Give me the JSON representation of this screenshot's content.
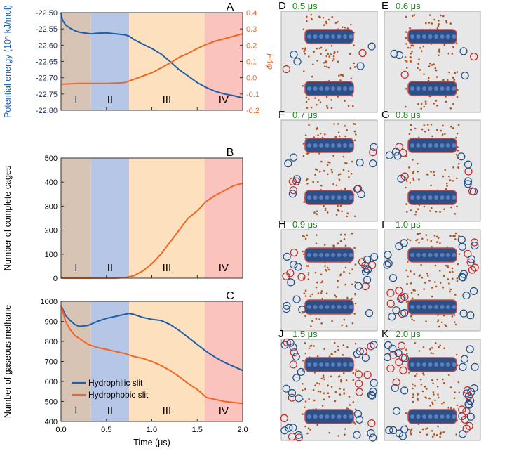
{
  "chart_data": {
    "type": "line",
    "x_axis": {
      "label": "Time (μs)",
      "range": [
        0,
        2.0
      ],
      "ticks": [
        "0.0",
        "0.5",
        "1.0",
        "1.5",
        "2.0"
      ]
    },
    "stage_boundaries": [
      0,
      0.33,
      0.75,
      1.58,
      2.0
    ],
    "stage_labels": [
      "I",
      "II",
      "III",
      "IV"
    ],
    "stage_colors": [
      "#d8c4b4",
      "#b6c6e6",
      "#fde1bf",
      "#fbc3bd"
    ],
    "panels": [
      {
        "letter": "A",
        "left_axis": {
          "label": "Potential energy (10⁵ kJ/mol)",
          "range": [
            -22.8,
            -22.5
          ],
          "ticks": [
            "-22.50",
            "-22.55",
            "-22.60",
            "-22.65",
            "-22.70",
            "-22.75",
            "-22.80"
          ],
          "color": "#1f5fa8"
        },
        "right_axis": {
          "label": "F4φ",
          "range": [
            -0.2,
            0.4
          ],
          "ticks": [
            "0.4",
            "0.3",
            "0.2",
            "0.1",
            "0.0",
            "-0.1",
            "-0.2"
          ],
          "color": "#f26522"
        },
        "series": [
          {
            "name": "Potential energy",
            "axis": "left",
            "color": "#1f5fa8",
            "x": [
              0,
              0.01,
              0.02,
              0.05,
              0.1,
              0.15,
              0.2,
              0.25,
              0.33,
              0.4,
              0.5,
              0.6,
              0.7,
              0.75,
              0.8,
              0.9,
              1.0,
              1.1,
              1.2,
              1.3,
              1.4,
              1.5,
              1.6,
              1.7,
              1.8,
              1.9,
              2.0
            ],
            "y": [
              -22.5,
              -22.515,
              -22.525,
              -22.538,
              -22.548,
              -22.555,
              -22.56,
              -22.562,
              -22.565,
              -22.563,
              -22.562,
              -22.565,
              -22.568,
              -22.572,
              -22.582,
              -22.597,
              -22.61,
              -22.627,
              -22.65,
              -22.675,
              -22.695,
              -22.715,
              -22.73,
              -22.742,
              -22.75,
              -22.755,
              -22.762
            ]
          },
          {
            "name": "F4φ",
            "axis": "right",
            "color": "#f26522",
            "x": [
              0,
              0.2,
              0.33,
              0.5,
              0.6,
              0.7,
              0.75,
              0.8,
              0.9,
              1.0,
              1.1,
              1.2,
              1.3,
              1.4,
              1.5,
              1.6,
              1.7,
              1.8,
              1.9,
              2.0
            ],
            "y": [
              -0.04,
              -0.035,
              -0.035,
              -0.035,
              -0.033,
              -0.03,
              -0.02,
              -0.01,
              0.01,
              0.03,
              0.06,
              0.09,
              0.125,
              0.15,
              0.18,
              0.205,
              0.225,
              0.24,
              0.255,
              0.27
            ]
          }
        ]
      },
      {
        "letter": "B",
        "left_axis": {
          "label": "Number of complete cages",
          "range": [
            0,
            500
          ],
          "ticks": [
            "500",
            "400",
            "300",
            "200",
            "100",
            "0"
          ],
          "color": "#000000"
        },
        "series": [
          {
            "name": "Complete cages",
            "axis": "left",
            "color": "#f26522",
            "x": [
              0,
              0.6,
              0.7,
              0.8,
              0.9,
              1.0,
              1.1,
              1.2,
              1.3,
              1.4,
              1.5,
              1.55,
              1.6,
              1.7,
              1.8,
              1.9,
              2.0
            ],
            "y": [
              0,
              0,
              2,
              10,
              30,
              60,
              100,
              150,
              200,
              250,
              280,
              300,
              320,
              345,
              365,
              385,
              395
            ]
          }
        ]
      },
      {
        "letter": "C",
        "left_axis": {
          "label": "Number of gaseous methane",
          "range": [
            400,
            1000
          ],
          "ticks": [
            "1000",
            "900",
            "800",
            "700",
            "600",
            "500",
            "400"
          ],
          "color": "#000000"
        },
        "series": [
          {
            "name": "Hydrophilic slit",
            "axis": "left",
            "color": "#1f5fa8",
            "x": [
              0,
              0.05,
              0.1,
              0.15,
              0.2,
              0.3,
              0.4,
              0.5,
              0.6,
              0.7,
              0.75,
              0.8,
              0.9,
              1.0,
              1.1,
              1.2,
              1.3,
              1.4,
              1.5,
              1.6,
              1.7,
              1.8,
              1.9,
              2.0
            ],
            "y": [
              980,
              930,
              905,
              885,
              875,
              880,
              900,
              915,
              925,
              935,
              940,
              935,
              920,
              910,
              905,
              885,
              855,
              820,
              785,
              750,
              720,
              695,
              675,
              655
            ]
          },
          {
            "name": "Hydrophobic slit",
            "axis": "left",
            "color": "#f26522",
            "x": [
              0,
              0.05,
              0.1,
              0.15,
              0.2,
              0.3,
              0.4,
              0.5,
              0.6,
              0.7,
              0.8,
              0.9,
              1.0,
              1.1,
              1.2,
              1.3,
              1.4,
              1.5,
              1.6,
              1.7,
              1.8,
              1.9,
              2.0
            ],
            "y": [
              980,
              900,
              860,
              830,
              815,
              785,
              770,
              760,
              750,
              740,
              725,
              715,
              700,
              680,
              655,
              625,
              590,
              560,
              520,
              510,
              500,
              495,
              490
            ]
          }
        ],
        "legend": [
          "Hydrophilic slit",
          "Hydrophobic slit"
        ]
      }
    ]
  },
  "snapshots": [
    {
      "letter": "D",
      "time": "0.5 μs"
    },
    {
      "letter": "E",
      "time": "0.6 μs"
    },
    {
      "letter": "F",
      "time": "0.7 μs"
    },
    {
      "letter": "G",
      "time": "0.8 μs"
    },
    {
      "letter": "H",
      "time": "0.9 μs"
    },
    {
      "letter": "I",
      "time": "1.0 μs"
    },
    {
      "letter": "J",
      "time": "1.5 μs"
    },
    {
      "letter": "K",
      "time": "2.0 μs"
    }
  ]
}
